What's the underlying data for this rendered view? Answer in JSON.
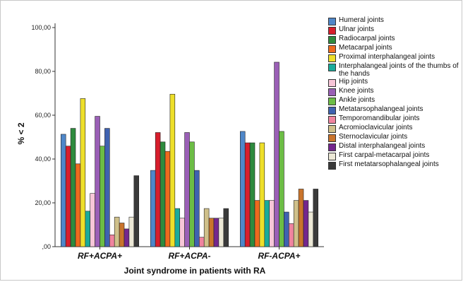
{
  "chart_data": {
    "type": "bar",
    "xlabel": "Joint syndrome in patients with RA",
    "ylabel": "% < 2",
    "ylim": [
      0,
      100
    ],
    "yticks": [
      "100,00",
      "80,00",
      "60,00",
      "40,00",
      "20,00",
      ",00"
    ],
    "ytick_values": [
      100,
      80,
      60,
      40,
      20,
      0
    ],
    "grid": false,
    "legend_position": "right",
    "categories": [
      "RF+ACPA+",
      "RF+ACPA-",
      "RF-ACPA+"
    ],
    "series": [
      {
        "name": "Humeral joints",
        "color": "#4f87c9",
        "values": [
          51.3,
          34.8,
          52.6
        ]
      },
      {
        "name": "Ulnar joints",
        "color": "#d81e2c",
        "values": [
          45.9,
          52.1,
          47.4
        ]
      },
      {
        "name": "Radiocarpal joints",
        "color": "#2e8b3e",
        "values": [
          54.0,
          47.8,
          47.4
        ]
      },
      {
        "name": "Metacarpal joints",
        "color": "#ee6a1e",
        "values": [
          37.8,
          43.5,
          21.1
        ]
      },
      {
        "name": "Proximal interphalangeal joints",
        "color": "#eedf2a",
        "values": [
          67.6,
          69.6,
          47.4
        ]
      },
      {
        "name": "Interphalangeal joints of the thumbs of the hands",
        "color": "#1aab9b",
        "values": [
          16.2,
          17.4,
          21.1
        ]
      },
      {
        "name": "Hip joints",
        "color": "#f7c6d8",
        "values": [
          24.3,
          13.0,
          21.1
        ]
      },
      {
        "name": "Knee joints",
        "color": "#9a5fb6",
        "values": [
          59.5,
          52.1,
          84.2
        ]
      },
      {
        "name": "Ankle joints",
        "color": "#6cbd45",
        "values": [
          45.9,
          47.8,
          52.6
        ]
      },
      {
        "name": "Metatarsophalangeal joints",
        "color": "#3f62b0",
        "values": [
          54.0,
          34.8,
          15.8
        ]
      },
      {
        "name": "Temporomandibular joints",
        "color": "#f0849f",
        "values": [
          5.4,
          4.3,
          10.5
        ]
      },
      {
        "name": "Acromioclavicular joints",
        "color": "#cfc08a",
        "values": [
          13.5,
          17.4,
          21.1
        ]
      },
      {
        "name": "Sternoclavicular joints",
        "color": "#c9742c",
        "values": [
          10.8,
          13.0,
          26.3
        ]
      },
      {
        "name": "Distal interphalangeal joints",
        "color": "#74278e",
        "values": [
          8.1,
          13.0,
          21.1
        ]
      },
      {
        "name": "First carpal-metacarpal joints",
        "color": "#ece8d6",
        "values": [
          13.5,
          13.0,
          15.8
        ]
      },
      {
        "name": "First metatarsophalangeal joints",
        "color": "#3a3a3a",
        "values": [
          32.4,
          17.4,
          26.3
        ]
      }
    ]
  }
}
